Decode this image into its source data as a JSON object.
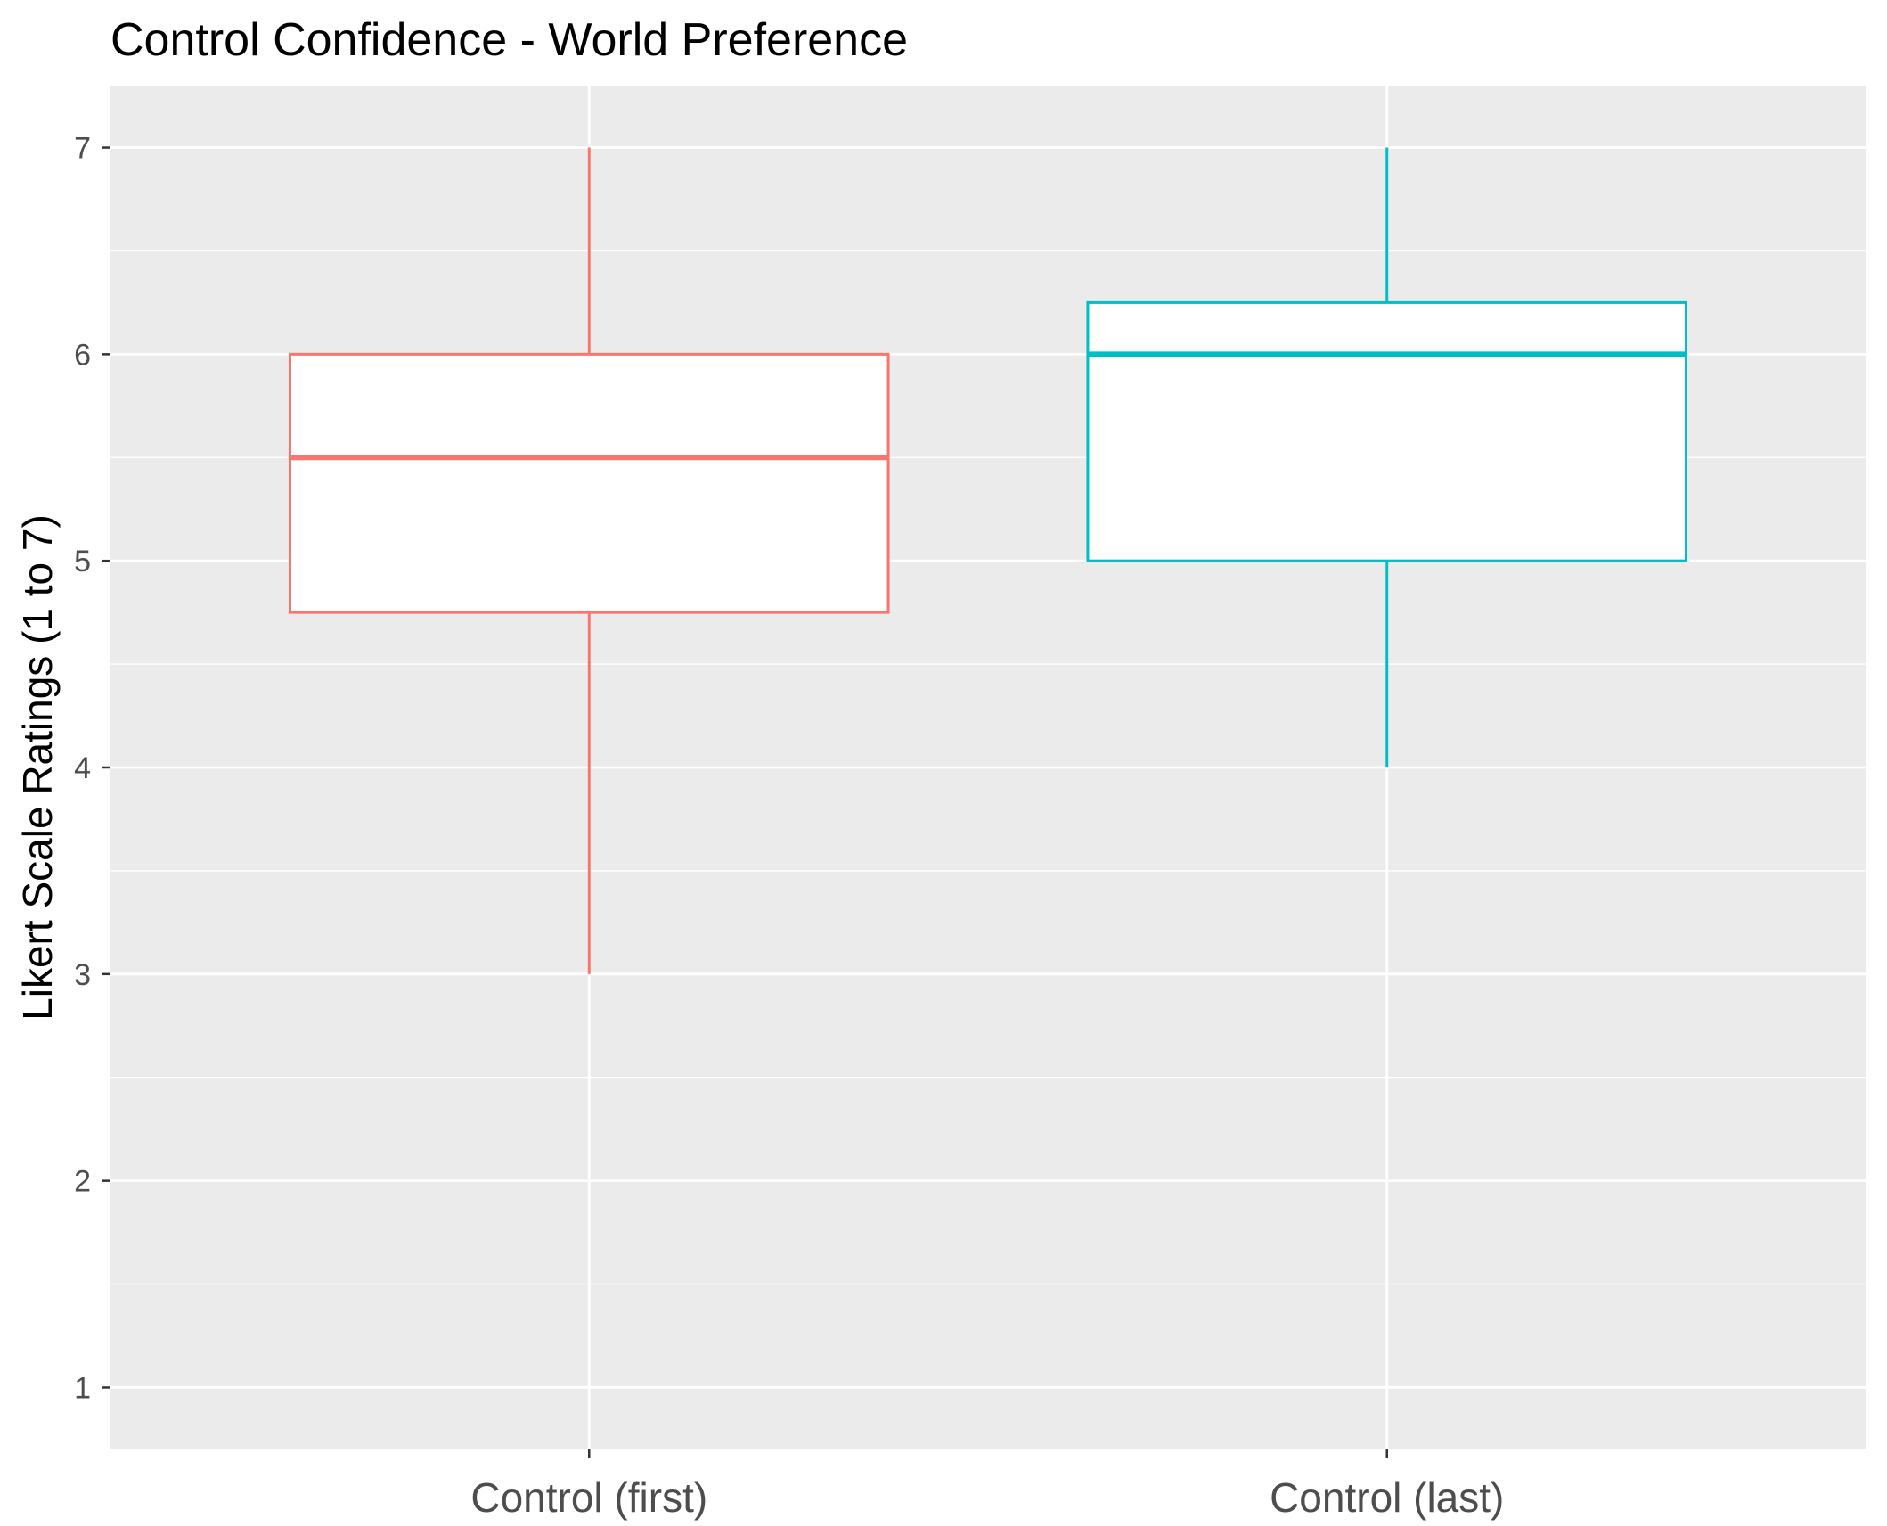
{
  "chart_data": {
    "type": "boxplot",
    "title": "Control Confidence - World Preference",
    "xlabel": "",
    "ylabel": "Likert Scale Ratings (1 to 7)",
    "ylim": [
      0.7,
      7.3
    ],
    "yticks": [
      1,
      2,
      3,
      4,
      5,
      6,
      7
    ],
    "categories": [
      "Control (first)",
      "Control (last)"
    ],
    "grid": true,
    "legend": "none",
    "series": [
      {
        "name": "Control (first)",
        "color": "#F8766D",
        "min": 3,
        "q1": 4.75,
        "median": 5.5,
        "q3": 6,
        "max": 7
      },
      {
        "name": "Control (last)",
        "color": "#00BFC4",
        "min": 4,
        "q1": 5,
        "median": 6,
        "q3": 6.25,
        "max": 7
      }
    ],
    "colors": {
      "panel_background": "#EBEBEB",
      "grid": "#FFFFFF",
      "tick_text": "#4D4D4D",
      "tick_mark": "#333333"
    }
  }
}
